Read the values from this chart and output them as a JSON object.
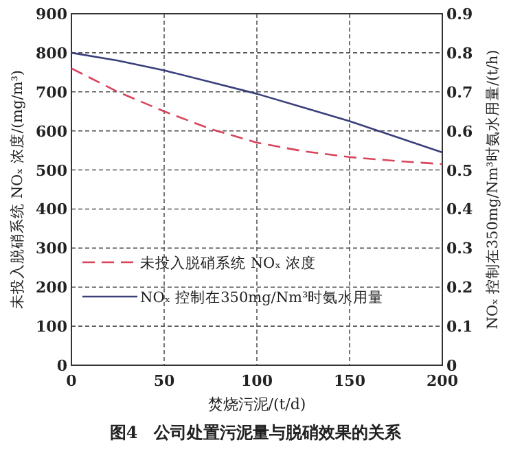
{
  "chart_data": {
    "type": "line",
    "xlabel": "焚烧污泥/(t/d)",
    "ylabel": "未投入脱硝系统 NOₓ 浓度/(mg/m³)",
    "y2label": "NOₓ 控制在350mg/Nm³时氨水用量/(t/h)",
    "x": [
      0,
      25,
      50,
      75,
      100,
      125,
      150,
      175,
      200
    ],
    "series": [
      {
        "name": "未投入脱硝系统 NOₓ 浓度",
        "color": "#d9435a",
        "line_style": "dashed",
        "values": [
          760,
          700,
          650,
          605,
          570,
          548,
          533,
          523,
          515
        ]
      },
      {
        "name": "NOₓ 控制在350mg/Nm³时氨水用量",
        "color": "#3a3f7a",
        "line_style": "solid",
        "axis": "y2",
        "values": [
          0.8,
          0.78,
          0.755,
          0.725,
          0.695,
          0.66,
          0.625,
          0.585,
          0.545
        ]
      }
    ],
    "xlim": [
      0,
      200
    ],
    "xticks": [
      0,
      50,
      100,
      150,
      200
    ],
    "ylim": [
      0,
      900
    ],
    "yticks": [
      0,
      100,
      200,
      300,
      400,
      500,
      600,
      700,
      800,
      900
    ],
    "y2lim": [
      0,
      0.9
    ],
    "y2ticks": [
      0,
      0.1,
      0.2,
      0.3,
      0.4,
      0.5,
      0.6,
      0.7,
      0.8,
      0.9
    ],
    "grid": true,
    "legend": "bottom left",
    "annotations": [
      "图4　公司处置污泥量与脱硝效果的关系"
    ]
  }
}
